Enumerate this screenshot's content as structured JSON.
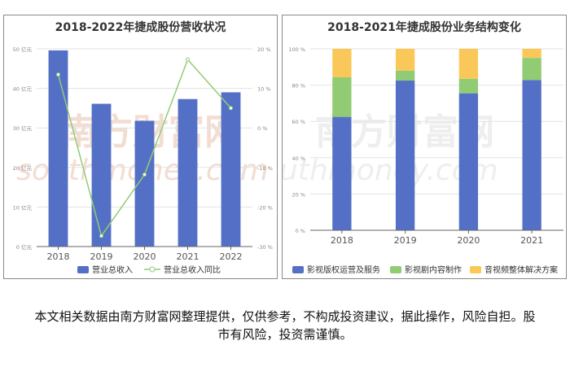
{
  "chart_data": [
    {
      "type": "bar",
      "title": "2018-2022年捷成股份营收状况",
      "categories": [
        "2018",
        "2019",
        "2020",
        "2021",
        "2022"
      ],
      "series": [
        {
          "name": "营业总收入",
          "type": "bar",
          "axis": "left",
          "values": [
            49.6,
            36.1,
            31.8,
            37.3,
            39.0
          ]
        },
        {
          "name": "营业总收入同比",
          "type": "line",
          "axis": "right",
          "values": [
            13.5,
            -27.3,
            -11.8,
            17.3,
            5.0
          ]
        }
      ],
      "y_left": {
        "ylim": [
          0,
          50
        ],
        "ticks": [
          "0 亿元",
          "10 亿元",
          "20 亿元",
          "30 亿元",
          "40 亿元",
          "50 亿元"
        ]
      },
      "y_right": {
        "ylim": [
          -30,
          20
        ],
        "ticks": [
          "-30 %",
          "-20 %",
          "-10 %",
          "0 %",
          "10 %",
          "20 %"
        ]
      },
      "grid": true,
      "legend": "bottom",
      "colors": {
        "bar": "#5470c6",
        "line": "#91cc75"
      }
    },
    {
      "type": "bar",
      "stacked": true,
      "title": "2018-2021年捷成股份业务结构变化",
      "categories": [
        "2018",
        "2019",
        "2020",
        "2021"
      ],
      "series": [
        {
          "name": "影视版权运营及服务",
          "values": [
            62.5,
            82.5,
            75.5,
            82.8
          ]
        },
        {
          "name": "影视剧内容制作",
          "values": [
            21.8,
            5.5,
            8.0,
            12.2
          ]
        },
        {
          "name": "音视频整体解决方案",
          "values": [
            15.7,
            12.0,
            16.5,
            5.0
          ]
        }
      ],
      "ylim": [
        0,
        100
      ],
      "ticks": [
        "0 %",
        "20 %",
        "40 %",
        "60 %",
        "80 %",
        "100 %"
      ],
      "grid": true,
      "legend": "bottom",
      "colors": [
        "#5470c6",
        "#91cc75",
        "#fac858"
      ]
    }
  ],
  "watermark": {
    "cn": "南方财富网",
    "en": "southmoney.com"
  },
  "disclaimer": "本文相关数据由南方财富网整理提供，仅供参考，不构成投资建议，据此操作，风险自担。股市有风险，投资需谨慎。"
}
